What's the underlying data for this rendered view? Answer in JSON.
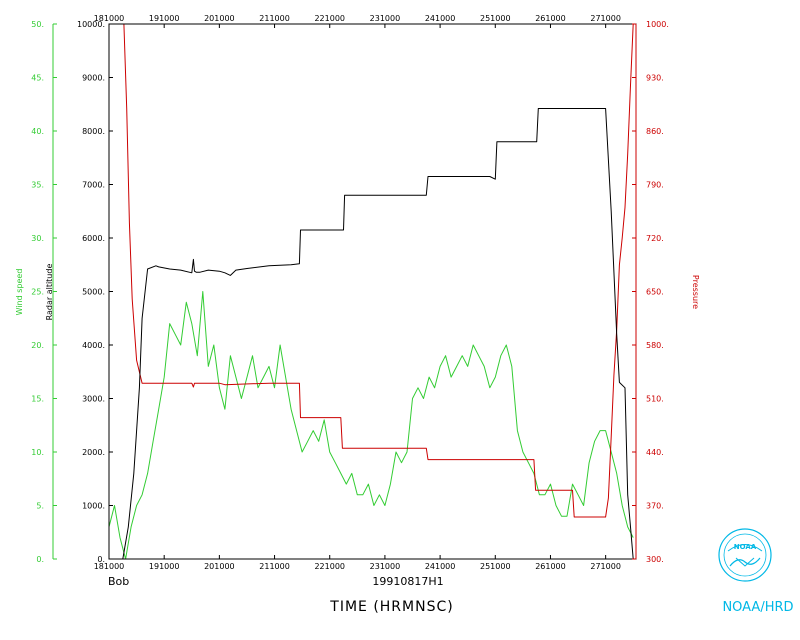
{
  "chart_data": {
    "type": "line",
    "xlabel": "TIME (HRMNSC)",
    "x_ticks": [
      "181000",
      "191000",
      "201000",
      "211000",
      "221000",
      "231000",
      "241000",
      "251000",
      "261000",
      "271000"
    ],
    "xlim": [
      181000,
      276500
    ],
    "storm_label": "Bob",
    "flight_id": "19910817H1",
    "axes": {
      "wind": {
        "label": "Wind speed",
        "ticks": [
          "0.",
          "5.",
          "10.",
          "15.",
          "20.",
          "25.",
          "30.",
          "35.",
          "40.",
          "45.",
          "50."
        ],
        "range": [
          0,
          50
        ],
        "color": "#33cc33"
      },
      "altitude": {
        "label": "Radar altitude",
        "ticks": [
          "0.",
          "1000.",
          "2000.",
          "3000.",
          "4000.",
          "5000.",
          "6000.",
          "7000.",
          "8000.",
          "9000.",
          "10000."
        ],
        "range": [
          0,
          10000
        ],
        "color": "#000000"
      },
      "pressure": {
        "label": "Pressure",
        "ticks": [
          "300.",
          "370.",
          "440.",
          "510.",
          "580.",
          "650.",
          "720.",
          "790.",
          "860.",
          "930.",
          "1000."
        ],
        "range": [
          300,
          1000
        ],
        "color": "#cc0000"
      }
    },
    "series": [
      {
        "name": "Radar altitude",
        "axis": "altitude",
        "color": "#000000",
        "x": [
          181000,
          183500,
          184500,
          185500,
          186500,
          187000,
          188000,
          189500,
          190000,
          192000,
          194000,
          196000,
          196300,
          196500,
          196800,
          197500,
          199000,
          201000,
          202000,
          203000,
          204000,
          206000,
          210000,
          214000,
          215500,
          215700,
          222000,
          223500,
          223700,
          238500,
          238800,
          250000,
          251000,
          251300,
          258000,
          258500,
          258800,
          270000,
          271000,
          272000,
          273000,
          273500,
          274500,
          275000,
          275500,
          276000
        ],
        "y": [
          0,
          0,
          600,
          1600,
          3200,
          4500,
          5420,
          5480,
          5460,
          5420,
          5400,
          5350,
          5600,
          5380,
          5360,
          5360,
          5400,
          5380,
          5350,
          5300,
          5400,
          5430,
          5480,
          5500,
          5520,
          6150,
          6150,
          6150,
          6800,
          6800,
          7150,
          7150,
          7100,
          7800,
          7800,
          7800,
          8420,
          8420,
          8420,
          6500,
          4200,
          3300,
          3200,
          1200,
          600,
          0
        ]
      },
      {
        "name": "Pressure",
        "axis": "pressure",
        "color": "#cc0000",
        "x": [
          181000,
          183700,
          184200,
          184700,
          185200,
          186000,
          187000,
          188000,
          196000,
          196300,
          196500,
          201000,
          202000,
          210000,
          215500,
          215700,
          223000,
          223300,
          238500,
          238800,
          250000,
          251000,
          251300,
          258000,
          258300,
          265000,
          265300,
          270000,
          271000,
          271500,
          272000,
          272500,
          273000,
          273500,
          274000,
          274500,
          275000,
          275500,
          276000
        ],
        "y": [
          1000,
          1000,
          890,
          740,
          640,
          560,
          530,
          530,
          530,
          525,
          530,
          530,
          528,
          530,
          530,
          485,
          485,
          445,
          445,
          430,
          430,
          430,
          430,
          430,
          390,
          390,
          355,
          355,
          355,
          380,
          460,
          540,
          600,
          685,
          720,
          760,
          830,
          920,
          1000
        ]
      },
      {
        "name": "Wind speed",
        "axis": "wind",
        "color": "#33cc33",
        "x": [
          181000,
          182000,
          183000,
          184000,
          185000,
          186000,
          187000,
          188000,
          189000,
          190000,
          191000,
          192000,
          193000,
          194000,
          195000,
          196000,
          197000,
          198000,
          199000,
          200000,
          201000,
          202000,
          203000,
          204000,
          205000,
          206000,
          207000,
          208000,
          209000,
          210000,
          211000,
          212000,
          213000,
          214000,
          215000,
          216000,
          217000,
          218000,
          219000,
          220000,
          221000,
          222000,
          223000,
          224000,
          225000,
          226000,
          227000,
          228000,
          229000,
          230000,
          231000,
          232000,
          233000,
          234000,
          235000,
          236000,
          237000,
          238000,
          239000,
          240000,
          241000,
          242000,
          243000,
          244000,
          245000,
          246000,
          247000,
          248000,
          249000,
          250000,
          251000,
          252000,
          253000,
          254000,
          255000,
          256000,
          257000,
          258000,
          259000,
          260000,
          261000,
          262000,
          263000,
          264000,
          265000,
          266000,
          267000,
          268000,
          269000,
          270000,
          271000,
          272000,
          273000,
          274000,
          275000,
          276000
        ],
        "y": [
          3,
          5,
          2,
          0,
          3,
          5,
          6,
          8,
          11,
          14,
          17,
          22,
          21,
          20,
          24,
          22,
          19,
          25,
          18,
          20,
          16,
          14,
          19,
          17,
          15,
          17,
          19,
          16,
          17,
          18,
          16,
          20,
          17,
          14,
          12,
          10,
          11,
          12,
          11,
          13,
          10,
          9,
          8,
          7,
          8,
          6,
          6,
          7,
          5,
          6,
          5,
          7,
          10,
          9,
          10,
          15,
          16,
          15,
          17,
          16,
          18,
          19,
          17,
          18,
          19,
          18,
          20,
          19,
          18,
          16,
          17,
          19,
          20,
          18,
          12,
          10,
          9,
          8,
          6,
          6,
          7,
          5,
          4,
          4,
          7,
          6,
          5,
          9,
          11,
          12,
          12,
          10,
          8,
          5,
          3,
          2
        ]
      }
    ]
  },
  "logo": {
    "text": "NOAA",
    "caption": "NOAA/HRD"
  }
}
